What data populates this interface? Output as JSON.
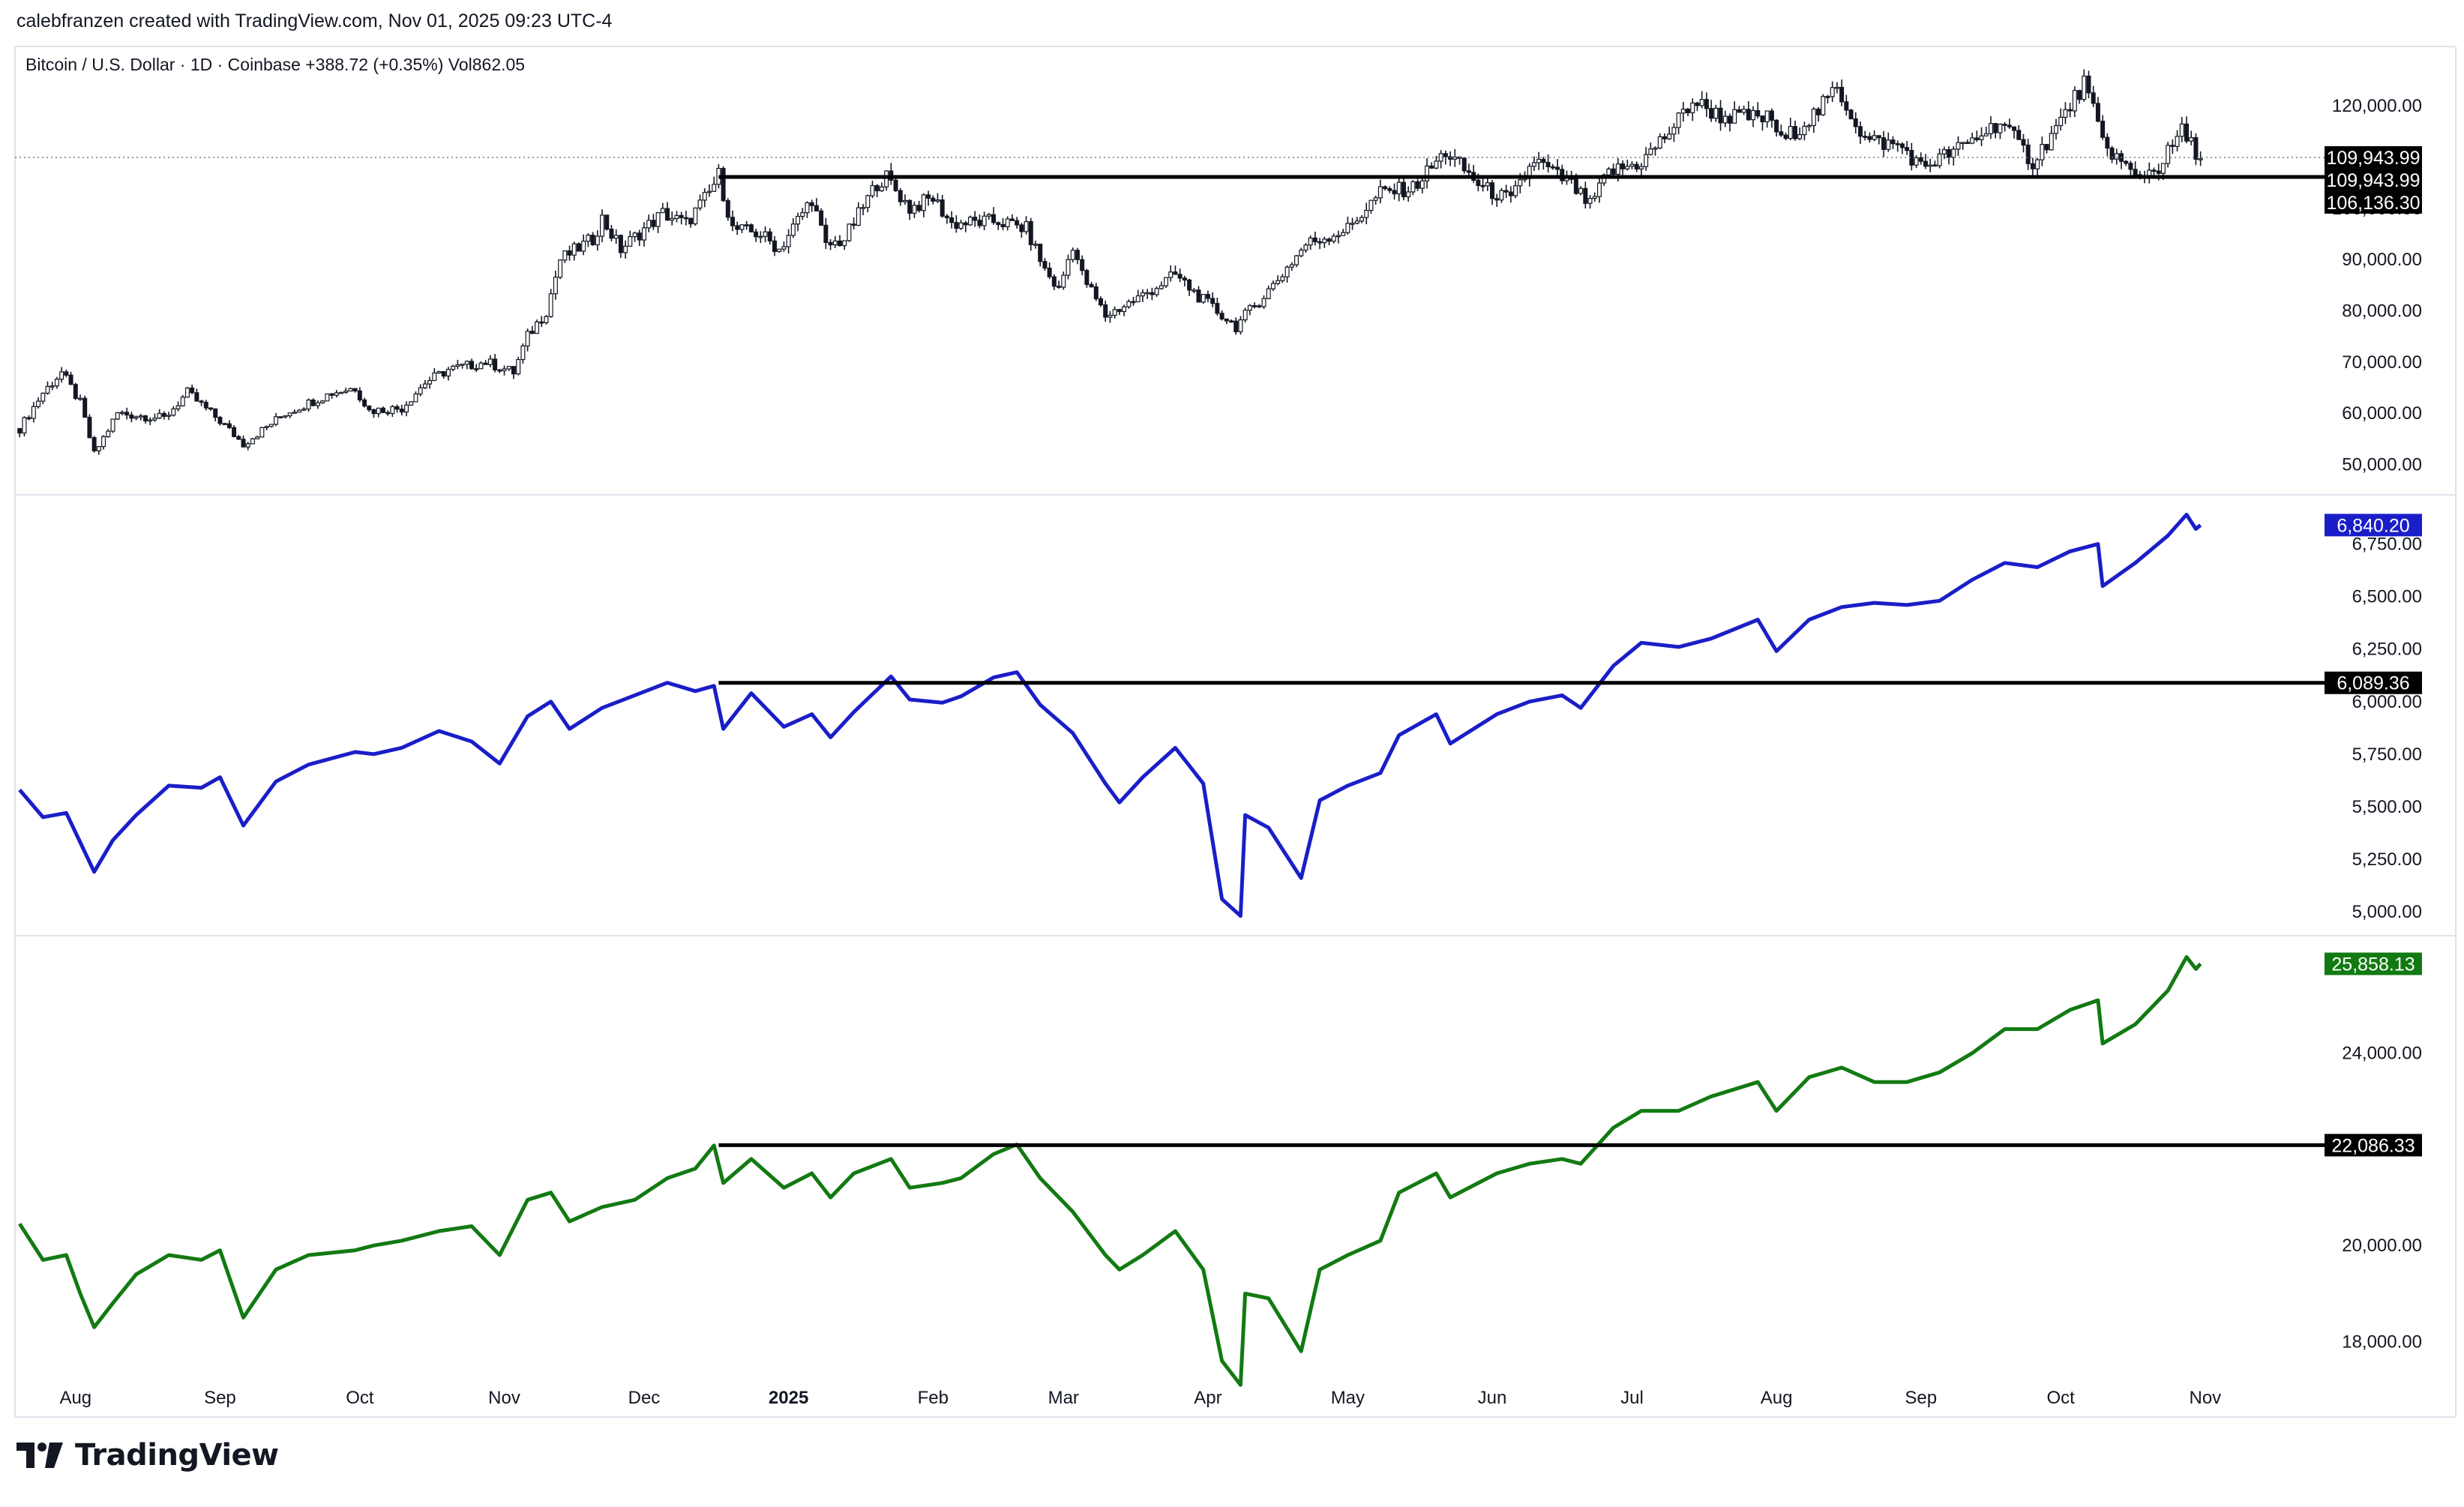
{
  "header": {
    "text": "calebfranzen created with TradingView.com, Nov 01, 2025 09:23 UTC-4"
  },
  "brand": {
    "logo_text": "TradingView",
    "logo_icon": "tradingview-logo-icon"
  },
  "colors": {
    "price": "#131722",
    "spx": "#1a1ec8",
    "ndx": "#127a12",
    "grid_border": "#e0e3eb",
    "level": "#000000"
  },
  "x_axis": {
    "ticks": [
      {
        "label": "Aug",
        "date": "2024-08-01",
        "bold": false
      },
      {
        "label": "Sep",
        "date": "2024-09-01",
        "bold": false
      },
      {
        "label": "Oct",
        "date": "2024-10-01",
        "bold": false
      },
      {
        "label": "Nov",
        "date": "2024-11-01",
        "bold": false
      },
      {
        "label": "Dec",
        "date": "2024-12-01",
        "bold": false
      },
      {
        "label": "2025",
        "date": "2025-01-01",
        "bold": true
      },
      {
        "label": "Feb",
        "date": "2025-02-01",
        "bold": false
      },
      {
        "label": "Mar",
        "date": "2025-03-01",
        "bold": false
      },
      {
        "label": "Apr",
        "date": "2025-04-01",
        "bold": false
      },
      {
        "label": "May",
        "date": "2025-05-01",
        "bold": false
      },
      {
        "label": "Jun",
        "date": "2025-06-01",
        "bold": false
      },
      {
        "label": "Jul",
        "date": "2025-07-01",
        "bold": false
      },
      {
        "label": "Aug",
        "date": "2025-08-01",
        "bold": false
      },
      {
        "label": "Sep",
        "date": "2025-09-01",
        "bold": false
      },
      {
        "label": "Oct",
        "date": "2025-10-01",
        "bold": false
      },
      {
        "label": "Nov",
        "date": "2025-11-01",
        "bold": false
      }
    ]
  },
  "chart_data": [
    {
      "type": "line",
      "legend": "Bitcoin / U.S. Dollar · 1D · Coinbase  +388.72 (+0.35%)  Vol862.05",
      "series": [
        {
          "name": "Bitcoin / U.S. Dollar",
          "color": "#131722",
          "style": "candles"
        }
      ],
      "y_ticks": [
        50000,
        60000,
        70000,
        80000,
        90000,
        100000,
        120000
      ],
      "y_tick_labels": [
        "50,000.00",
        "60,000.00",
        "70,000.00",
        "80,000.00",
        "90,000.00",
        "100,000.00",
        "120,000.00"
      ],
      "ylim": [
        47000,
        127500
      ],
      "price_badges": [
        {
          "label": "109,943.99",
          "value": 109943.99,
          "style": "dark"
        },
        {
          "label": "109,943.99",
          "value": 109943.99,
          "style": "dark"
        }
      ],
      "level": {
        "value": 106136.3,
        "label": "106,136.30",
        "from": "2024-12-17"
      },
      "dotted_last": 109943.99,
      "points": [
        [
          "2024-07-20",
          57000
        ],
        [
          "2024-07-25",
          64000
        ],
        [
          "2024-07-29",
          68000
        ],
        [
          "2024-08-02",
          62000
        ],
        [
          "2024-08-05",
          52000
        ],
        [
          "2024-08-10",
          60000
        ],
        [
          "2024-08-20",
          59000
        ],
        [
          "2024-08-25",
          64000
        ],
        [
          "2024-09-01",
          58500
        ],
        [
          "2024-09-06",
          54000
        ],
        [
          "2024-09-15",
          60000
        ],
        [
          "2024-09-25",
          64000
        ],
        [
          "2024-09-30",
          65000
        ],
        [
          "2024-10-03",
          60500
        ],
        [
          "2024-10-10",
          61000
        ],
        [
          "2024-10-15",
          66000
        ],
        [
          "2024-10-20",
          68500
        ],
        [
          "2024-10-28",
          70000
        ],
        [
          "2024-11-03",
          68000
        ],
        [
          "2024-11-06",
          75000
        ],
        [
          "2024-11-10",
          80000
        ],
        [
          "2024-11-13",
          90000
        ],
        [
          "2024-11-20",
          94000
        ],
        [
          "2024-11-22",
          98000
        ],
        [
          "2024-11-26",
          92000
        ],
        [
          "2024-12-01",
          96000
        ],
        [
          "2024-12-05",
          99000
        ],
        [
          "2024-12-10",
          97000
        ],
        [
          "2024-12-15",
          103000
        ],
        [
          "2024-12-17",
          106500
        ],
        [
          "2024-12-20",
          96000
        ],
        [
          "2024-12-26",
          95000
        ],
        [
          "2024-12-30",
          92000
        ],
        [
          "2025-01-06",
          102000
        ],
        [
          "2025-01-09",
          92500
        ],
        [
          "2025-01-13",
          94000
        ],
        [
          "2025-01-20",
          105000
        ],
        [
          "2025-01-22",
          106000
        ],
        [
          "2025-01-27",
          100000
        ],
        [
          "2025-02-01",
          102000
        ],
        [
          "2025-02-05",
          97000
        ],
        [
          "2025-02-15",
          97500
        ],
        [
          "2025-02-21",
          96000
        ],
        [
          "2025-02-25",
          88000
        ],
        [
          "2025-02-28",
          84000
        ],
        [
          "2025-03-03",
          93000
        ],
        [
          "2025-03-05",
          87000
        ],
        [
          "2025-03-10",
          79000
        ],
        [
          "2025-03-18",
          83000
        ],
        [
          "2025-03-25",
          87000
        ],
        [
          "2025-03-31",
          82000
        ],
        [
          "2025-04-07",
          77000
        ],
        [
          "2025-04-15",
          85000
        ],
        [
          "2025-04-22",
          93000
        ],
        [
          "2025-05-01",
          96000
        ],
        [
          "2025-05-08",
          103000
        ],
        [
          "2025-05-15",
          104000
        ],
        [
          "2025-05-22",
          111000
        ],
        [
          "2025-05-30",
          104000
        ],
        [
          "2025-06-05",
          101500
        ],
        [
          "2025-06-10",
          109500
        ],
        [
          "2025-06-18",
          104500
        ],
        [
          "2025-06-22",
          100500
        ],
        [
          "2025-06-26",
          107000
        ],
        [
          "2025-07-03",
          109000
        ],
        [
          "2025-07-10",
          116000
        ],
        [
          "2025-07-14",
          121000
        ],
        [
          "2025-07-20",
          118000
        ],
        [
          "2025-07-31",
          117500
        ],
        [
          "2025-08-02",
          113000
        ],
        [
          "2025-08-10",
          119000
        ],
        [
          "2025-08-14",
          123500
        ],
        [
          "2025-08-20",
          113500
        ],
        [
          "2025-08-28",
          112000
        ],
        [
          "2025-09-01",
          108000
        ],
        [
          "2025-09-10",
          112000
        ],
        [
          "2025-09-18",
          117000
        ],
        [
          "2025-09-25",
          109000
        ],
        [
          "2025-10-01",
          117000
        ],
        [
          "2025-10-06",
          124500
        ],
        [
          "2025-10-10",
          113000
        ],
        [
          "2025-10-17",
          106000
        ],
        [
          "2025-10-22",
          108000
        ],
        [
          "2025-10-27",
          115000
        ],
        [
          "2025-10-31",
          109944
        ]
      ]
    },
    {
      "type": "line",
      "series": [
        {
          "name": "",
          "color": "#1a1ec8"
        }
      ],
      "y_ticks": [
        5000,
        5250,
        5500,
        5750,
        6000,
        6250,
        6500,
        6750
      ],
      "y_tick_labels": [
        "5,000.00",
        "5,250.00",
        "5,500.00",
        "5,750.00",
        "6,000.00",
        "6,250.00",
        "6,500.00",
        "6,750.00"
      ],
      "ylim": [
        4950,
        6895
      ],
      "price_badges": [
        {
          "label": "6,840.20",
          "value": 6840.2,
          "style": "blue"
        }
      ],
      "level": {
        "value": 6089.36,
        "label": "6,089.36",
        "from": "2024-12-17"
      },
      "points": [
        [
          "2024-07-20",
          5580
        ],
        [
          "2024-07-25",
          5450
        ],
        [
          "2024-07-30",
          5470
        ],
        [
          "2024-08-02",
          5330
        ],
        [
          "2024-08-05",
          5190
        ],
        [
          "2024-08-09",
          5340
        ],
        [
          "2024-08-14",
          5460
        ],
        [
          "2024-08-21",
          5600
        ],
        [
          "2024-08-28",
          5590
        ],
        [
          "2024-09-01",
          5640
        ],
        [
          "2024-09-06",
          5410
        ],
        [
          "2024-09-13",
          5620
        ],
        [
          "2024-09-20",
          5700
        ],
        [
          "2024-09-30",
          5760
        ],
        [
          "2024-10-04",
          5750
        ],
        [
          "2024-10-10",
          5780
        ],
        [
          "2024-10-18",
          5860
        ],
        [
          "2024-10-25",
          5810
        ],
        [
          "2024-10-31",
          5705
        ],
        [
          "2024-11-06",
          5930
        ],
        [
          "2024-11-11",
          6000
        ],
        [
          "2024-11-15",
          5870
        ],
        [
          "2024-11-22",
          5970
        ],
        [
          "2024-11-29",
          6030
        ],
        [
          "2024-12-06",
          6090
        ],
        [
          "2024-12-12",
          6050
        ],
        [
          "2024-12-16",
          6075
        ],
        [
          "2024-12-18",
          5870
        ],
        [
          "2024-12-24",
          6040
        ],
        [
          "2024-12-31",
          5880
        ],
        [
          "2025-01-06",
          5940
        ],
        [
          "2025-01-10",
          5830
        ],
        [
          "2025-01-15",
          5950
        ],
        [
          "2025-01-23",
          6120
        ],
        [
          "2025-01-27",
          6010
        ],
        [
          "2025-02-03",
          5995
        ],
        [
          "2025-02-07",
          6025
        ],
        [
          "2025-02-14",
          6115
        ],
        [
          "2025-02-19",
          6140
        ],
        [
          "2025-02-24",
          5985
        ],
        [
          "2025-03-03",
          5850
        ],
        [
          "2025-03-10",
          5610
        ],
        [
          "2025-03-13",
          5520
        ],
        [
          "2025-03-18",
          5640
        ],
        [
          "2025-03-25",
          5780
        ],
        [
          "2025-03-31",
          5610
        ],
        [
          "2025-04-04",
          5060
        ],
        [
          "2025-04-08",
          4980
        ],
        [
          "2025-04-09",
          5460
        ],
        [
          "2025-04-14",
          5400
        ],
        [
          "2025-04-21",
          5160
        ],
        [
          "2025-04-25",
          5530
        ],
        [
          "2025-05-01",
          5600
        ],
        [
          "2025-05-08",
          5660
        ],
        [
          "2025-05-12",
          5840
        ],
        [
          "2025-05-20",
          5940
        ],
        [
          "2025-05-23",
          5800
        ],
        [
          "2025-06-02",
          5940
        ],
        [
          "2025-06-09",
          6000
        ],
        [
          "2025-06-16",
          6030
        ],
        [
          "2025-06-20",
          5970
        ],
        [
          "2025-06-27",
          6170
        ],
        [
          "2025-07-03",
          6280
        ],
        [
          "2025-07-11",
          6260
        ],
        [
          "2025-07-18",
          6300
        ],
        [
          "2025-07-28",
          6390
        ],
        [
          "2025-08-01",
          6240
        ],
        [
          "2025-08-08",
          6390
        ],
        [
          "2025-08-15",
          6450
        ],
        [
          "2025-08-22",
          6470
        ],
        [
          "2025-08-29",
          6460
        ],
        [
          "2025-09-05",
          6480
        ],
        [
          "2025-09-12",
          6580
        ],
        [
          "2025-09-19",
          6660
        ],
        [
          "2025-09-26",
          6640
        ],
        [
          "2025-10-03",
          6715
        ],
        [
          "2025-10-09",
          6750
        ],
        [
          "2025-10-10",
          6550
        ],
        [
          "2025-10-17",
          6660
        ],
        [
          "2025-10-24",
          6790
        ],
        [
          "2025-10-28",
          6890
        ],
        [
          "2025-10-30",
          6822
        ],
        [
          "2025-10-31",
          6840
        ]
      ]
    },
    {
      "type": "line",
      "series": [
        {
          "name": "",
          "color": "#127a12"
        }
      ],
      "y_ticks": [
        18000,
        20000,
        24000
      ],
      "y_tick_labels": [
        "18,000.00",
        "20,000.00",
        "24,000.00"
      ],
      "ylim": [
        16900,
        26100
      ],
      "price_badges": [
        {
          "label": "25,858.13",
          "value": 25858.13,
          "style": "green"
        }
      ],
      "level": {
        "value": 22086.33,
        "label": "22,086.33",
        "from": "2024-12-17"
      },
      "points": [
        [
          "2024-07-20",
          20450
        ],
        [
          "2024-07-25",
          19700
        ],
        [
          "2024-07-30",
          19800
        ],
        [
          "2024-08-02",
          19000
        ],
        [
          "2024-08-05",
          18300
        ],
        [
          "2024-08-09",
          18800
        ],
        [
          "2024-08-14",
          19400
        ],
        [
          "2024-08-21",
          19800
        ],
        [
          "2024-08-28",
          19700
        ],
        [
          "2024-09-01",
          19900
        ],
        [
          "2024-09-06",
          18500
        ],
        [
          "2024-09-13",
          19500
        ],
        [
          "2024-09-20",
          19800
        ],
        [
          "2024-09-30",
          19900
        ],
        [
          "2024-10-04",
          20000
        ],
        [
          "2024-10-10",
          20100
        ],
        [
          "2024-10-18",
          20300
        ],
        [
          "2024-10-25",
          20400
        ],
        [
          "2024-10-31",
          19800
        ],
        [
          "2024-11-06",
          20950
        ],
        [
          "2024-11-11",
          21100
        ],
        [
          "2024-11-15",
          20500
        ],
        [
          "2024-11-22",
          20800
        ],
        [
          "2024-11-29",
          20950
        ],
        [
          "2024-12-06",
          21400
        ],
        [
          "2024-12-12",
          21600
        ],
        [
          "2024-12-16",
          22080
        ],
        [
          "2024-12-18",
          21300
        ],
        [
          "2024-12-24",
          21800
        ],
        [
          "2024-12-31",
          21200
        ],
        [
          "2025-01-06",
          21500
        ],
        [
          "2025-01-10",
          21000
        ],
        [
          "2025-01-15",
          21500
        ],
        [
          "2025-01-23",
          21800
        ],
        [
          "2025-01-27",
          21200
        ],
        [
          "2025-02-03",
          21300
        ],
        [
          "2025-02-07",
          21400
        ],
        [
          "2025-02-14",
          21900
        ],
        [
          "2025-02-19",
          22100
        ],
        [
          "2025-02-24",
          21400
        ],
        [
          "2025-03-03",
          20700
        ],
        [
          "2025-03-10",
          19800
        ],
        [
          "2025-03-13",
          19500
        ],
        [
          "2025-03-18",
          19800
        ],
        [
          "2025-03-25",
          20300
        ],
        [
          "2025-03-31",
          19500
        ],
        [
          "2025-04-04",
          17600
        ],
        [
          "2025-04-08",
          17100
        ],
        [
          "2025-04-09",
          19000
        ],
        [
          "2025-04-14",
          18900
        ],
        [
          "2025-04-21",
          17800
        ],
        [
          "2025-04-25",
          19500
        ],
        [
          "2025-05-01",
          19800
        ],
        [
          "2025-05-08",
          20100
        ],
        [
          "2025-05-12",
          21100
        ],
        [
          "2025-05-20",
          21500
        ],
        [
          "2025-05-23",
          21000
        ],
        [
          "2025-06-02",
          21500
        ],
        [
          "2025-06-09",
          21700
        ],
        [
          "2025-06-16",
          21800
        ],
        [
          "2025-06-20",
          21700
        ],
        [
          "2025-06-27",
          22450
        ],
        [
          "2025-07-03",
          22800
        ],
        [
          "2025-07-11",
          22800
        ],
        [
          "2025-07-18",
          23100
        ],
        [
          "2025-07-28",
          23400
        ],
        [
          "2025-08-01",
          22800
        ],
        [
          "2025-08-08",
          23500
        ],
        [
          "2025-08-15",
          23700
        ],
        [
          "2025-08-22",
          23400
        ],
        [
          "2025-08-29",
          23400
        ],
        [
          "2025-09-05",
          23600
        ],
        [
          "2025-09-12",
          24000
        ],
        [
          "2025-09-19",
          24500
        ],
        [
          "2025-09-26",
          24500
        ],
        [
          "2025-10-03",
          24900
        ],
        [
          "2025-10-09",
          25100
        ],
        [
          "2025-10-10",
          24200
        ],
        [
          "2025-10-17",
          24600
        ],
        [
          "2025-10-24",
          25300
        ],
        [
          "2025-10-28",
          26000
        ],
        [
          "2025-10-30",
          25750
        ],
        [
          "2025-10-31",
          25858
        ]
      ]
    }
  ]
}
